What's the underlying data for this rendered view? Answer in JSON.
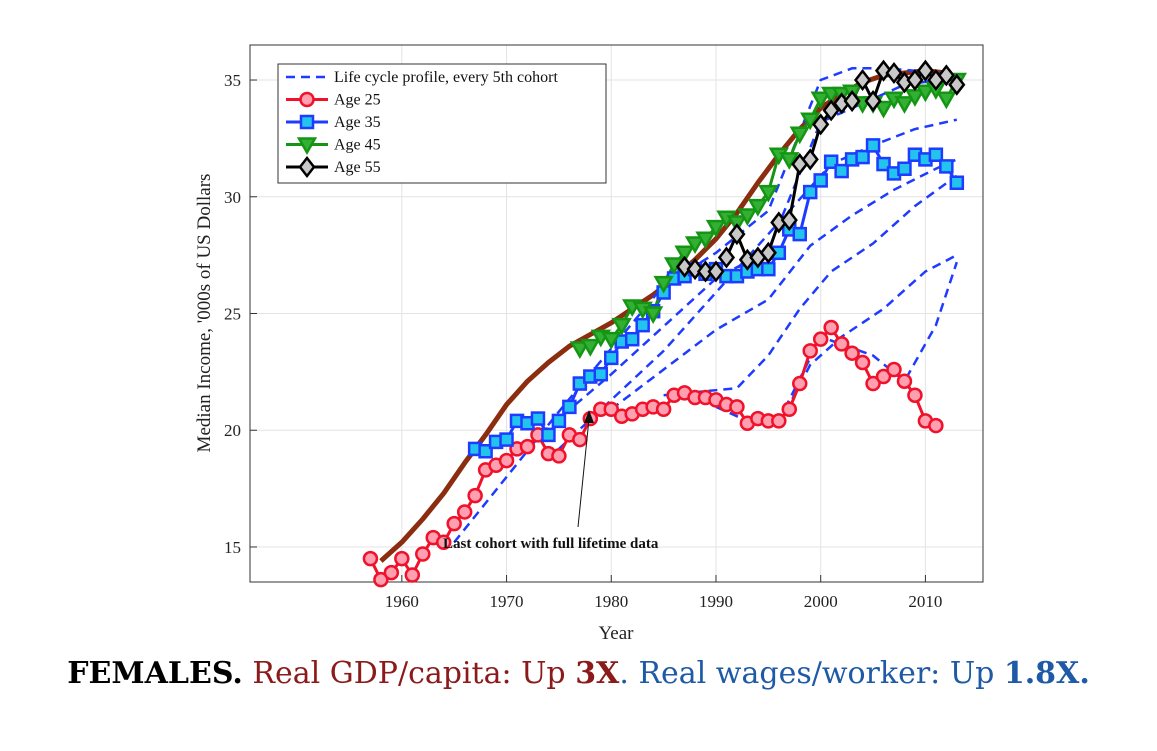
{
  "chart_data": {
    "type": "line",
    "title": "",
    "xlabel": "Year",
    "ylabel": "Median Income, '000s of US Dollars",
    "xlim": [
      1945.5,
      2015.5
    ],
    "ylim": [
      13.5,
      36.5
    ],
    "xticks": [
      1960,
      1970,
      1980,
      1990,
      2000,
      2010
    ],
    "yticks": [
      15,
      20,
      25,
      30,
      35
    ],
    "grid": true,
    "legend": "top-left",
    "annotation": {
      "text": "Last cohort with full lifetime data",
      "arrow_to": [
        1983,
        20.7
      ]
    },
    "background_line": {
      "color": "#8b2d0e",
      "x": [
        1958,
        1960,
        1962,
        1964,
        1966,
        1968,
        1970,
        1972,
        1974,
        1976,
        1978,
        1980,
        1982,
        1984,
        1986,
        1988,
        1990,
        1992,
        1994,
        1996,
        1998,
        2000,
        2002,
        2004,
        2006,
        2008,
        2010,
        2012
      ],
      "y": [
        14.4,
        15.2,
        16.2,
        17.3,
        18.6,
        19.8,
        21.1,
        22.1,
        22.9,
        23.6,
        24.1,
        24.6,
        25.2,
        25.8,
        26.5,
        27.3,
        28.2,
        29.3,
        30.6,
        31.8,
        32.9,
        33.8,
        34.4,
        34.9,
        35.2,
        35.3,
        35.4,
        35.3
      ]
    },
    "series": [
      {
        "name": "Life cycle profile, every 5th cohort",
        "color": "#1e3cff",
        "style": "dashed",
        "lines": [
          {
            "x": [
              1965,
              1975,
              1985,
              1990,
              1995,
              2000,
              2003,
              2006,
              2009,
              2013
            ],
            "y": [
              15.2,
              20.8,
              26.2,
              27.6,
              29.4,
              35.0,
              35.5,
              35.5,
              35.4,
              35.2
            ]
          },
          {
            "x": [
              1970,
              1980,
              1990,
              1995,
              2000,
              2004,
              2008,
              2013
            ],
            "y": [
              18.6,
              22.4,
              26.5,
              27.7,
              33.2,
              34.0,
              34.8,
              35.1
            ]
          },
          {
            "x": [
              1975,
              1985,
              1992,
              1997,
              2001,
              2005,
              2009,
              2013
            ],
            "y": [
              19.2,
              23.4,
              26.9,
              29.4,
              31.4,
              32.2,
              32.9,
              33.3
            ]
          },
          {
            "x": [
              1980,
              1990,
              1995,
              1999,
              2003,
              2007,
              2011,
              2013
            ],
            "y": [
              20.9,
              24.3,
              25.6,
              27.9,
              29.2,
              30.3,
              31.2,
              31.6
            ]
          },
          {
            "x": [
              1985,
              1992,
              1995,
              1998,
              2001,
              2005,
              2009,
              2013
            ],
            "y": [
              21.5,
              21.8,
              23.2,
              25.2,
              26.8,
              28.0,
              29.6,
              30.9
            ]
          },
          {
            "x": [
              1990,
              1993,
              1995,
              1997,
              1999,
              2002,
              2006,
              2010,
              2013
            ],
            "y": [
              21.0,
              20.4,
              20.3,
              21.1,
              22.8,
              24.0,
              25.2,
              26.8,
              27.5
            ]
          },
          {
            "x": [
              1993,
              1996,
              2000,
              2005,
              2008,
              2011,
              2013
            ],
            "y": [
              20.4,
              20.4,
              24.0,
              23.2,
              22.1,
              24.5,
              27.2
            ]
          }
        ]
      },
      {
        "name": "Age 25",
        "color": "#f0122a",
        "marker_fill": "#ff9fb0",
        "marker": "circle",
        "x": [
          1957,
          1958,
          1959,
          1960,
          1961,
          1962,
          1963,
          1964,
          1965,
          1966,
          1967,
          1968,
          1969,
          1970,
          1971,
          1972,
          1973,
          1974,
          1975,
          1976,
          1977,
          1978,
          1979,
          1980,
          1981,
          1982,
          1983,
          1984,
          1985,
          1986,
          1987,
          1988,
          1989,
          1990,
          1991,
          1992,
          1993,
          1994,
          1995,
          1996,
          1997,
          1998,
          1999,
          2000,
          2001,
          2002,
          2003,
          2004,
          2005,
          2006,
          2007,
          2008,
          2009,
          2010,
          2011
        ],
        "y": [
          14.5,
          13.6,
          13.9,
          14.5,
          13.8,
          14.7,
          15.4,
          15.2,
          16.0,
          16.5,
          17.2,
          18.3,
          18.5,
          18.7,
          19.2,
          19.3,
          19.8,
          19.0,
          18.9,
          19.8,
          19.6,
          20.5,
          20.9,
          20.9,
          20.6,
          20.7,
          20.9,
          21.0,
          20.9,
          21.5,
          21.6,
          21.4,
          21.4,
          21.3,
          21.1,
          21.0,
          20.3,
          20.5,
          20.4,
          20.4,
          20.9,
          22.0,
          23.4,
          23.9,
          24.4,
          23.7,
          23.3,
          22.9,
          22.0,
          22.3,
          22.6,
          22.1,
          21.5,
          20.4,
          20.2
        ]
      },
      {
        "name": "Age 35",
        "color": "#1e3cff",
        "marker_fill": "#22c4ee",
        "marker": "square",
        "x": [
          1967,
          1968,
          1969,
          1970,
          1971,
          1972,
          1973,
          1974,
          1975,
          1976,
          1977,
          1978,
          1979,
          1980,
          1981,
          1982,
          1983,
          1984,
          1985,
          1986,
          1987,
          1988,
          1989,
          1990,
          1991,
          1992,
          1993,
          1994,
          1995,
          1996,
          1997,
          1998,
          1999,
          2000,
          2001,
          2002,
          2003,
          2004,
          2005,
          2006,
          2007,
          2008,
          2009,
          2010,
          2011,
          2012,
          2013
        ],
        "y": [
          19.2,
          19.1,
          19.5,
          19.6,
          20.4,
          20.3,
          20.5,
          19.8,
          20.4,
          21.0,
          22.0,
          22.3,
          22.4,
          23.1,
          23.8,
          23.9,
          24.5,
          25.1,
          25.9,
          26.5,
          26.6,
          26.9,
          26.7,
          26.9,
          26.6,
          26.6,
          26.8,
          26.9,
          26.9,
          27.6,
          28.6,
          28.4,
          30.2,
          30.7,
          31.5,
          31.1,
          31.6,
          31.7,
          32.2,
          31.4,
          31.0,
          31.2,
          31.8,
          31.6,
          31.8,
          31.3,
          30.6
        ]
      },
      {
        "name": "Age 45",
        "color": "#149614",
        "marker_fill": "#33b033",
        "marker": "triangle-down",
        "x": [
          1977,
          1978,
          1979,
          1980,
          1981,
          1982,
          1983,
          1984,
          1985,
          1986,
          1987,
          1988,
          1989,
          1990,
          1991,
          1992,
          1993,
          1994,
          1995,
          1996,
          1997,
          1998,
          1999,
          2000,
          2001,
          2002,
          2003,
          2004,
          2005,
          2006,
          2007,
          2008,
          2009,
          2010,
          2011,
          2012,
          2013
        ],
        "y": [
          23.5,
          23.6,
          24.0,
          23.9,
          24.5,
          25.3,
          25.2,
          25.0,
          26.3,
          27.1,
          27.6,
          28.0,
          28.2,
          28.7,
          29.1,
          28.9,
          29.2,
          29.6,
          30.2,
          31.8,
          31.6,
          32.7,
          33.3,
          34.2,
          34.4,
          34.4,
          34.5,
          34.0,
          34.0,
          33.8,
          34.2,
          34.0,
          34.3,
          34.5,
          34.6,
          34.2,
          35.0
        ]
      },
      {
        "name": "Age 55",
        "color": "#000000",
        "marker_fill": "#c8c8c8",
        "marker": "diamond",
        "x": [
          1987,
          1988,
          1989,
          1990,
          1991,
          1992,
          1993,
          1994,
          1995,
          1996,
          1997,
          1998,
          1999,
          2000,
          2001,
          2002,
          2003,
          2004,
          2005,
          2006,
          2007,
          2008,
          2009,
          2010,
          2011,
          2012,
          2013
        ],
        "y": [
          27.0,
          26.9,
          26.8,
          26.8,
          27.4,
          28.4,
          27.3,
          27.4,
          27.6,
          28.9,
          29.0,
          31.4,
          31.6,
          33.1,
          33.7,
          34.0,
          34.1,
          35.0,
          34.1,
          35.4,
          35.3,
          34.9,
          35.0,
          35.4,
          35.0,
          35.2,
          34.8
        ]
      }
    ]
  },
  "caption": {
    "title": "FEMALES.",
    "gdp_text": "Real GDP/capita: Up",
    "gdp_value": "3X",
    "separator": ".",
    "wage_text": "Real wages/worker: Up",
    "wage_value": "1.8X."
  }
}
